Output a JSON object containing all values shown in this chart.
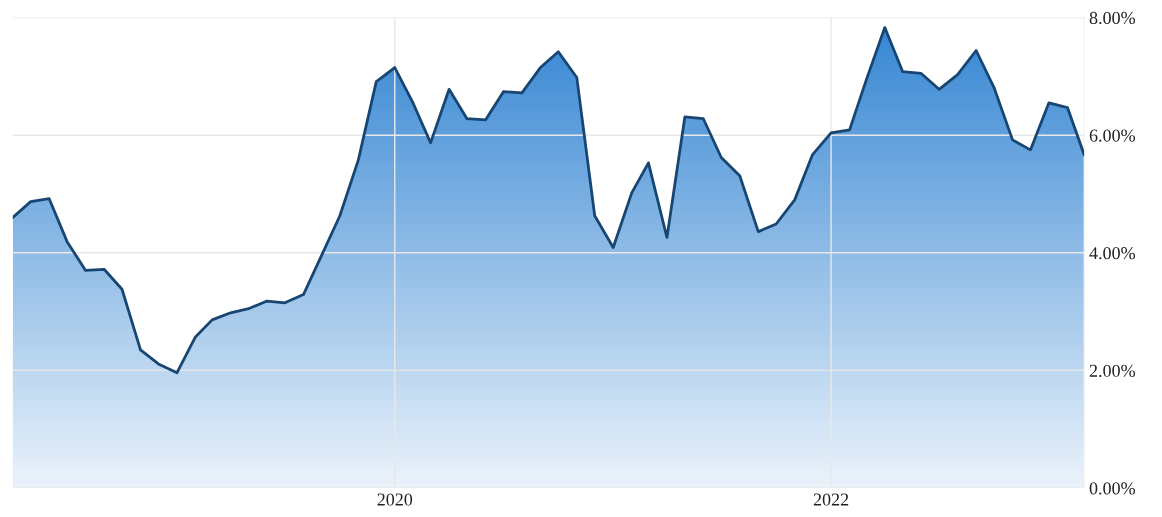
{
  "chart_data": {
    "type": "area",
    "x": [
      "2018-04",
      "2018-05",
      "2018-06",
      "2018-07",
      "2018-08",
      "2018-09",
      "2018-10",
      "2018-11",
      "2018-12",
      "2019-01",
      "2019-02",
      "2019-03",
      "2019-04",
      "2019-05",
      "2019-06",
      "2019-07",
      "2019-08",
      "2019-09",
      "2019-10",
      "2019-11",
      "2019-12",
      "2020-01",
      "2020-02",
      "2020-03",
      "2020-04",
      "2020-05",
      "2020-06",
      "2020-07",
      "2020-08",
      "2020-09",
      "2020-10",
      "2020-11",
      "2020-12",
      "2021-01",
      "2021-02",
      "2021-03",
      "2021-04",
      "2021-05",
      "2021-06",
      "2021-07",
      "2021-08",
      "2021-09",
      "2021-10",
      "2021-11",
      "2021-12",
      "2022-01",
      "2022-02",
      "2022-03",
      "2022-04",
      "2022-05",
      "2022-06",
      "2022-07",
      "2022-08",
      "2022-09",
      "2022-10",
      "2022-11",
      "2022-12",
      "2023-01",
      "2023-02",
      "2023-03"
    ],
    "series": [
      {
        "color": "#2a7fd0",
        "values": [
          4.6,
          4.87,
          4.92,
          4.19,
          3.7,
          3.72,
          3.38,
          2.35,
          2.11,
          1.96,
          2.57,
          2.86,
          2.98,
          3.05,
          3.18,
          3.15,
          3.29,
          3.97,
          4.63,
          5.58,
          6.91,
          7.15,
          6.54,
          5.87,
          6.78,
          6.28,
          6.26,
          6.74,
          6.72,
          7.15,
          7.42,
          6.98,
          4.63,
          4.09,
          5.02,
          5.53,
          4.26,
          6.31,
          6.28,
          5.62,
          5.31,
          4.36,
          4.49,
          4.9,
          5.67,
          6.04,
          6.09,
          6.94,
          7.83,
          7.08,
          7.05,
          6.78,
          7.03,
          7.44,
          6.81,
          5.92,
          5.75,
          6.55,
          6.47,
          5.67
        ]
      }
    ],
    "xlim": [
      "2018-04",
      "2023-03"
    ],
    "xticks": [
      {
        "value": "2020-01",
        "label": "2020"
      },
      {
        "value": "2022-01",
        "label": "2022"
      }
    ],
    "ylim": [
      0,
      8
    ],
    "yticks": [
      {
        "value": 0,
        "label": "0.00%"
      },
      {
        "value": 2,
        "label": "2.00%"
      },
      {
        "value": 4,
        "label": "4.00%"
      },
      {
        "value": 6,
        "label": "6.00%"
      },
      {
        "value": 8,
        "label": "8.00%"
      }
    ],
    "grid": true,
    "line_style": "solid",
    "marker": "none"
  }
}
